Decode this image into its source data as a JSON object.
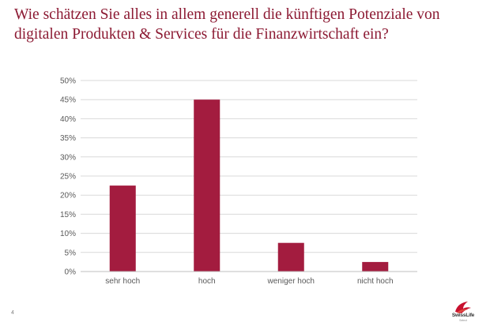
{
  "title_lines": [
    "Wie schätzen Sie alles in allem generell die künftigen Potenziale von",
    "digitalen Produkten & Services für die Finanzwirtschaft ein?"
  ],
  "page_number": "4",
  "logo": {
    "name": "swiss-life-logo",
    "text": "SwissLife",
    "subtext": "Select"
  },
  "colors": {
    "title": "#8c1a33",
    "bar": "#a31c3f",
    "grid": "#d9d9d9",
    "axis": "#bfbfbf",
    "tick": "#595959"
  },
  "chart_data": {
    "type": "bar",
    "title": "",
    "xlabel": "",
    "ylabel": "",
    "categories": [
      "sehr hoch",
      "hoch",
      "weniger hoch",
      "nicht hoch"
    ],
    "values": [
      22.5,
      45,
      7.5,
      2.5
    ],
    "unit": "%",
    "ylim": [
      0,
      50
    ],
    "ytick_labels": [
      "0%",
      "5%",
      "10%",
      "15%",
      "20%",
      "25%",
      "30%",
      "35%",
      "40%",
      "45%",
      "50%"
    ],
    "grid": true,
    "legend": "none"
  }
}
